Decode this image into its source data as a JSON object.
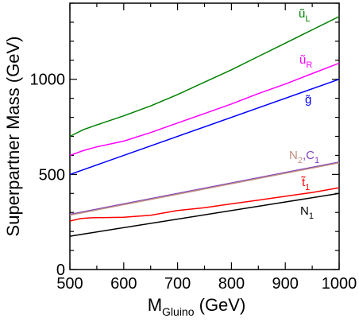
{
  "chart_data": {
    "type": "line",
    "title": "",
    "xlabel": {
      "main": "M",
      "sub": "Gluino",
      "unit": "(GeV)"
    },
    "ylabel": "Superpartner Mass  (GeV)",
    "xlim": [
      500,
      1000
    ],
    "ylim": [
      0,
      1400
    ],
    "x_ticks": [
      500,
      600,
      700,
      800,
      900,
      1000
    ],
    "x_tick_labels": [
      "500",
      "600",
      "700",
      "800",
      "900",
      "1000"
    ],
    "y_ticks": [
      0,
      500,
      1000
    ],
    "y_tick_labels": [
      "0",
      "500",
      "1000"
    ],
    "grid": false,
    "series": [
      {
        "key": "uL",
        "label": {
          "base": "ũ",
          "sub": "L",
          "sub2": ""
        },
        "color": "#008000",
        "x": [
          500,
          525,
          550,
          600,
          650,
          700,
          750,
          800,
          850,
          900,
          950,
          1000
        ],
        "y": [
          700,
          735,
          760,
          808,
          860,
          920,
          985,
          1050,
          1120,
          1190,
          1260,
          1330
        ]
      },
      {
        "key": "uR",
        "label": {
          "base": "ũ",
          "sub": "R",
          "sub2": ""
        },
        "color": "#ff00ff",
        "x": [
          500,
          525,
          550,
          600,
          650,
          700,
          750,
          800,
          850,
          900,
          950,
          1000
        ],
        "y": [
          600,
          625,
          645,
          675,
          720,
          770,
          820,
          870,
          925,
          975,
          1030,
          1085
        ]
      },
      {
        "key": "gluino",
        "label": {
          "base": "g̃",
          "sub": "",
          "sub2": ""
        },
        "color": "#0000ff",
        "x": [
          500,
          1000
        ],
        "y": [
          500,
          1000
        ]
      },
      {
        "key": "N2C1_purple",
        "label": {
          "base": "N",
          "sub": "2",
          "sub2": "1",
          "mid": ",C"
        },
        "color": "#8040c0",
        "x": [
          500,
          1000
        ],
        "y": [
          290,
          565
        ]
      },
      {
        "key": "N2C1_tan",
        "label": null,
        "color": "#c09080",
        "x": [
          500,
          1000
        ],
        "y": [
          286,
          561
        ]
      },
      {
        "key": "stop1",
        "label": {
          "base": "t̃",
          "sub": "1",
          "sub2": ""
        },
        "color": "#ff0000",
        "x": [
          500,
          520,
          540,
          600,
          650,
          700,
          750,
          800,
          850,
          900,
          950,
          1000
        ],
        "y": [
          255,
          268,
          272,
          275,
          285,
          310,
          325,
          345,
          365,
          385,
          405,
          430
        ]
      },
      {
        "key": "N1",
        "label": {
          "base": "N",
          "sub": "1",
          "sub2": ""
        },
        "color": "#000000",
        "x": [
          500,
          1000
        ],
        "y": [
          175,
          400
        ]
      }
    ]
  }
}
